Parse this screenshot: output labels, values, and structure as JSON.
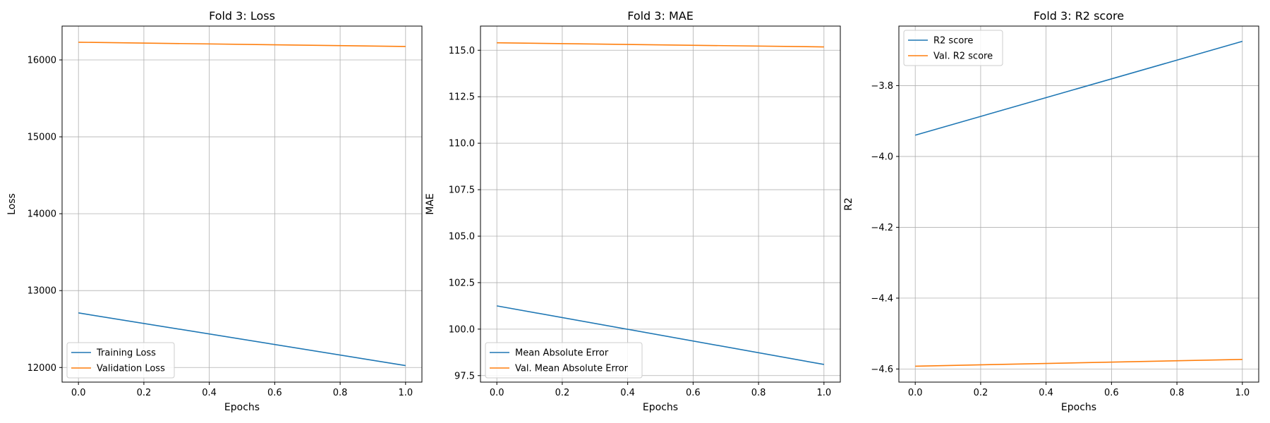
{
  "chart_data": [
    {
      "type": "line",
      "title": "Fold 3: Loss",
      "xlabel": "Epochs",
      "ylabel": "Loss",
      "xlim": [
        -0.05,
        1.05
      ],
      "ylim": [
        11810,
        16440
      ],
      "xticks": [
        0.0,
        0.2,
        0.4,
        0.6,
        0.8,
        1.0
      ],
      "xtick_labels": [
        "0.0",
        "0.2",
        "0.4",
        "0.6",
        "0.8",
        "1.0"
      ],
      "yticks": [
        12000,
        13000,
        14000,
        15000,
        16000
      ],
      "ytick_labels": [
        "12000",
        "13000",
        "14000",
        "15000",
        "16000"
      ],
      "grid": true,
      "legend_position": "lower-left",
      "series": [
        {
          "name": "Training Loss",
          "color": "#1f77b4",
          "x": [
            0,
            1
          ],
          "y": [
            12710,
            12025
          ]
        },
        {
          "name": "Validation Loss",
          "color": "#ff7f0e",
          "x": [
            0,
            1
          ],
          "y": [
            16230,
            16175
          ]
        }
      ]
    },
    {
      "type": "line",
      "title": "Fold 3: MAE",
      "xlabel": "Epochs",
      "ylabel": "MAE",
      "xlim": [
        -0.05,
        1.05
      ],
      "ylim": [
        97.15,
        116.3
      ],
      "xticks": [
        0.0,
        0.2,
        0.4,
        0.6,
        0.8,
        1.0
      ],
      "xtick_labels": [
        "0.0",
        "0.2",
        "0.4",
        "0.6",
        "0.8",
        "1.0"
      ],
      "yticks": [
        97.5,
        100.0,
        102.5,
        105.0,
        107.5,
        110.0,
        112.5,
        115.0
      ],
      "ytick_labels": [
        "97.5",
        "100.0",
        "102.5",
        "105.0",
        "107.5",
        "110.0",
        "112.5",
        "115.0"
      ],
      "grid": true,
      "legend_position": "lower-left",
      "series": [
        {
          "name": "Mean Absolute Error",
          "color": "#1f77b4",
          "x": [
            0,
            1
          ],
          "y": [
            101.25,
            98.1
          ]
        },
        {
          "name": "Val. Mean Absolute Error",
          "color": "#ff7f0e",
          "x": [
            0,
            1
          ],
          "y": [
            115.4,
            115.18
          ]
        }
      ]
    },
    {
      "type": "line",
      "title": "Fold 3: R2 score",
      "xlabel": "Epochs",
      "ylabel": "R2",
      "xlim": [
        -0.05,
        1.05
      ],
      "ylim": [
        -4.637,
        -3.632
      ],
      "xticks": [
        0.0,
        0.2,
        0.4,
        0.6,
        0.8,
        1.0
      ],
      "xtick_labels": [
        "0.0",
        "0.2",
        "0.4",
        "0.6",
        "0.8",
        "1.0"
      ],
      "yticks": [
        -4.6,
        -4.4,
        -4.2,
        -4.0,
        -3.8
      ],
      "ytick_labels": [
        "−4.6",
        "−4.4",
        "−4.2",
        "−4.0",
        "−3.8"
      ],
      "grid": true,
      "legend_position": "top-left",
      "series": [
        {
          "name": "R2 score",
          "color": "#1f77b4",
          "x": [
            0,
            1
          ],
          "y": [
            -3.94,
            -3.675
          ]
        },
        {
          "name": "Val. R2 score",
          "color": "#ff7f0e",
          "x": [
            0,
            1
          ],
          "y": [
            -4.592,
            -4.573
          ]
        }
      ]
    }
  ]
}
